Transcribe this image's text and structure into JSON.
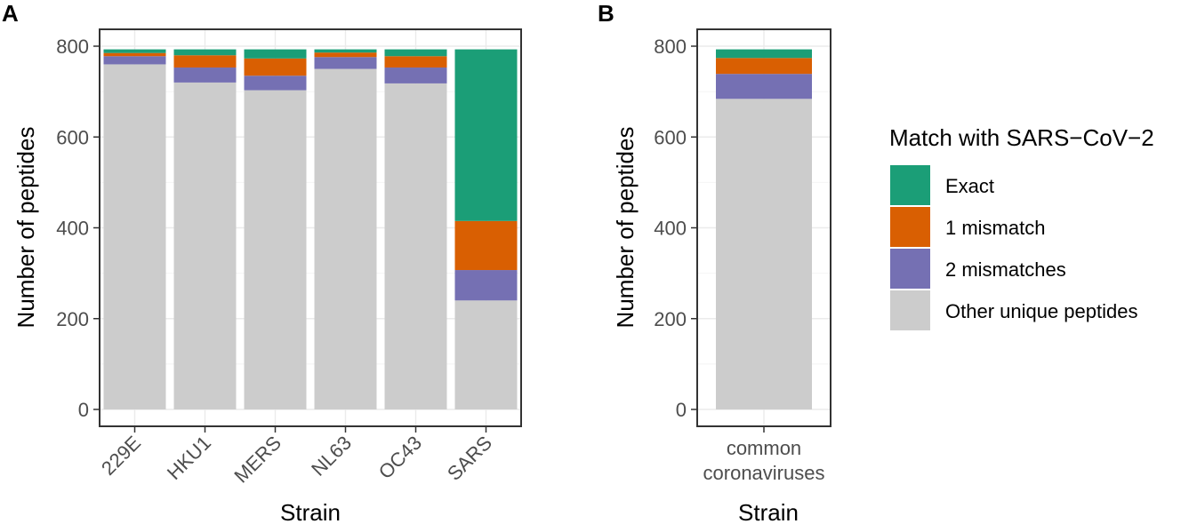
{
  "colors": {
    "exact": "#1b9e77",
    "one_mismatch": "#d95f02",
    "two_mismatches": "#7570b3",
    "other": "#cccccc",
    "panel_border": "#333333",
    "grid_major": "#ebebeb",
    "grid_minor": "#f4f4f4",
    "tick_text": "#4d4d4d"
  },
  "legend": {
    "title": "Match with SARS−CoV−2",
    "entries": [
      {
        "key": "exact",
        "label": "Exact",
        "color": "#1b9e77"
      },
      {
        "key": "one_mismatch",
        "label": "1 mismatch",
        "color": "#d95f02"
      },
      {
        "key": "two_mismatches",
        "label": "2 mismatches",
        "color": "#7570b3"
      },
      {
        "key": "other",
        "label": "Other unique peptides",
        "color": "#cccccc"
      }
    ]
  },
  "chart_data": [
    {
      "panel": "A",
      "type": "bar",
      "stacked": true,
      "title": "",
      "xlabel": "Strain",
      "ylabel": "Number of peptides",
      "ylim": [
        0,
        800
      ],
      "yticks": [
        0,
        200,
        400,
        600,
        800
      ],
      "categories": [
        "229E",
        "HKU1",
        "MERS",
        "NL63",
        "OC43",
        "SARS"
      ],
      "series": [
        {
          "name": "Other unique peptides",
          "key": "other",
          "values": [
            760,
            720,
            703,
            750,
            718,
            240
          ]
        },
        {
          "name": "2 mismatches",
          "key": "two_mismatches",
          "values": [
            18,
            33,
            32,
            26,
            35,
            67
          ]
        },
        {
          "name": "1 mismatch",
          "key": "one_mismatch",
          "values": [
            7,
            27,
            38,
            10,
            25,
            108
          ]
        },
        {
          "name": "Exact",
          "key": "exact",
          "values": [
            8,
            13,
            20,
            7,
            15,
            378
          ]
        }
      ]
    },
    {
      "panel": "B",
      "type": "bar",
      "stacked": true,
      "title": "",
      "xlabel": "Strain",
      "ylabel": "Number of peptides",
      "ylim": [
        0,
        800
      ],
      "yticks": [
        0,
        200,
        400,
        600,
        800
      ],
      "categories": [
        "common\ncoronaviruses"
      ],
      "series": [
        {
          "name": "Other unique peptides",
          "key": "other",
          "values": [
            684
          ]
        },
        {
          "name": "2 mismatches",
          "key": "two_mismatches",
          "values": [
            55
          ]
        },
        {
          "name": "1 mismatch",
          "key": "one_mismatch",
          "values": [
            35
          ]
        },
        {
          "name": "Exact",
          "key": "exact",
          "values": [
            19
          ]
        }
      ]
    }
  ]
}
